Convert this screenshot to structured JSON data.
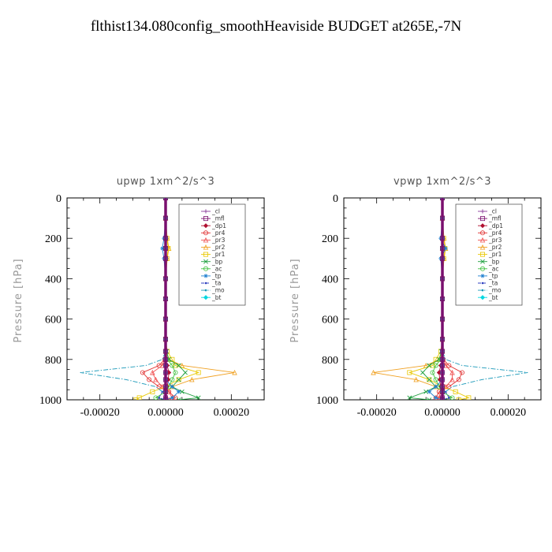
{
  "title": "flthist134.080config_smoothHeaviside  BUDGET at265E,-7N",
  "chart_data": [
    {
      "type": "line",
      "title": "upwp   1xm^2/s^3",
      "ylabel": "Pressure [hPa]",
      "xlabel": "",
      "xlim": [
        -0.0003,
        0.0003
      ],
      "ylim": [
        1000,
        0
      ],
      "xticks": [
        -0.0002,
        0.0,
        0.0002
      ],
      "xtick_labels": [
        "-0.00020",
        "0.00000",
        "0.00020"
      ],
      "yticks": [
        0,
        200,
        400,
        600,
        800,
        1000
      ],
      "ytick_labels": [
        "0",
        "200",
        "400",
        "600",
        "800",
        "1000"
      ],
      "legend_position": "top-right",
      "y": [
        0,
        100,
        200,
        250,
        300,
        400,
        500,
        600,
        700,
        760,
        800,
        830,
        865,
        900,
        935,
        960,
        990,
        1000
      ],
      "series": [
        {
          "name": "_cl",
          "color": "#8a3c9a",
          "marker": "plus",
          "dash": "solid",
          "values": [
            0,
            0,
            0,
            0,
            0,
            0,
            0,
            0,
            0,
            0,
            0,
            0,
            0,
            0,
            0,
            0,
            0,
            0
          ]
        },
        {
          "name": "_mfl",
          "color": "#7a0f6e",
          "marker": "square",
          "dash": "solid",
          "values": [
            0,
            0,
            0,
            0,
            0,
            0,
            0,
            0,
            0,
            0,
            0,
            0,
            0,
            0,
            0,
            0,
            0,
            0
          ]
        },
        {
          "name": "_dp1",
          "color": "#b01030",
          "marker": "diamond",
          "dash": "solid",
          "values": [
            0,
            0,
            0,
            0,
            0,
            0,
            0,
            0,
            0,
            0,
            0,
            5e-06,
            1e-05,
            8e-06,
            5e-06,
            3e-06,
            1e-06,
            0
          ]
        },
        {
          "name": "_pr4",
          "color": "#e03030",
          "marker": "circle",
          "dash": "solid",
          "values": [
            0,
            0,
            0,
            0,
            0,
            0,
            0,
            0,
            0,
            0,
            -3e-06,
            -2e-05,
            -7e-05,
            -5e-05,
            -2e-05,
            1e-05,
            3e-05,
            2e-05
          ]
        },
        {
          "name": "_pr3",
          "color": "#f05050",
          "marker": "triangle",
          "dash": "solid",
          "values": [
            0,
            0,
            0,
            0,
            0,
            0,
            0,
            0,
            0,
            0,
            -2e-06,
            -1e-05,
            -4e-05,
            -3e-05,
            -1e-05,
            1e-05,
            2e-05,
            1e-05
          ]
        },
        {
          "name": "_pr2",
          "color": "#f0a020",
          "marker": "triangle",
          "dash": "solid",
          "values": [
            0,
            0,
            5e-06,
            1e-05,
            5e-06,
            0,
            0,
            0,
            0,
            0,
            1e-05,
            5e-05,
            0.00021,
            8e-05,
            2e-05,
            0,
            0,
            0
          ]
        },
        {
          "name": "_pr1",
          "color": "#e8c800",
          "marker": "square",
          "dash": "solid",
          "values": [
            0,
            0,
            4e-06,
            8e-06,
            4e-06,
            0,
            0,
            0,
            0,
            5e-06,
            2e-05,
            3e-05,
            0.0001,
            4e-05,
            0,
            -4e-05,
            -8e-05,
            -9e-05
          ]
        },
        {
          "name": "_bp",
          "color": "#20a040",
          "marker": "cross",
          "dash": "solid",
          "values": [
            0,
            0,
            0,
            0,
            0,
            0,
            0,
            0,
            0,
            3e-06,
            1e-05,
            4e-05,
            6e-05,
            4e-05,
            2e-05,
            5e-05,
            0.0001,
            4e-05
          ]
        },
        {
          "name": "_ac",
          "color": "#40c040",
          "marker": "circle",
          "dash": "solid",
          "values": [
            0,
            0,
            0,
            0,
            0,
            0,
            0,
            0,
            0,
            0,
            5e-06,
            2e-05,
            3e-05,
            2e-05,
            1e-05,
            0,
            -3e-05,
            0
          ]
        },
        {
          "name": "_tp",
          "color": "#2080d0",
          "marker": "star",
          "dash": "solid",
          "values": [
            0,
            0,
            -5e-06,
            -1e-05,
            -5e-06,
            0,
            0,
            0,
            0,
            0,
            0,
            0,
            0,
            0,
            2e-05,
            4e-05,
            2e-05,
            0
          ]
        },
        {
          "name": "_ta",
          "color": "#3040c0",
          "marker": "dot",
          "dash": "dash",
          "values": [
            0,
            0,
            0,
            0,
            0,
            0,
            0,
            0,
            0,
            0,
            0,
            0,
            0,
            0,
            0,
            -1e-05,
            -2e-05,
            0
          ]
        },
        {
          "name": "_mo",
          "color": "#1898b8",
          "marker": "none",
          "dash": "dashdot",
          "values": [
            0,
            0,
            0,
            0,
            0,
            0,
            0,
            0,
            0,
            0,
            -1e-05,
            -6e-05,
            -0.00026,
            -0.00012,
            -3e-05,
            -1e-05,
            0,
            0
          ]
        },
        {
          "name": "_bt",
          "color": "#00d8e0",
          "marker": "diamond",
          "dash": "solid",
          "values": [
            0,
            0,
            0,
            0,
            0,
            0,
            0,
            0,
            0,
            0,
            0,
            0,
            0,
            0,
            0,
            0,
            0,
            0
          ]
        }
      ]
    },
    {
      "type": "line",
      "title": "vpwp   1xm^2/s^3",
      "ylabel": "Pressure [hPa]",
      "xlabel": "",
      "xlim": [
        -0.0003,
        0.0003
      ],
      "ylim": [
        1000,
        0
      ],
      "xticks": [
        -0.0002,
        0.0,
        0.0002
      ],
      "xtick_labels": [
        "-0.00020",
        "0.00000",
        "0.00020"
      ],
      "yticks": [
        0,
        200,
        400,
        600,
        800,
        1000
      ],
      "ytick_labels": [
        "0",
        "200",
        "400",
        "600",
        "800",
        "1000"
      ],
      "legend_position": "top-right",
      "y": [
        0,
        100,
        200,
        250,
        300,
        400,
        500,
        600,
        700,
        760,
        800,
        830,
        865,
        900,
        935,
        960,
        990,
        1000
      ],
      "series": [
        {
          "name": "_cl",
          "color": "#8a3c9a",
          "marker": "plus",
          "dash": "solid",
          "values": [
            0,
            0,
            0,
            0,
            0,
            0,
            0,
            0,
            0,
            0,
            0,
            0,
            0,
            0,
            0,
            0,
            0,
            0
          ]
        },
        {
          "name": "_mfl",
          "color": "#7a0f6e",
          "marker": "square",
          "dash": "solid",
          "values": [
            0,
            0,
            0,
            0,
            0,
            0,
            0,
            0,
            0,
            0,
            0,
            0,
            0,
            0,
            0,
            0,
            0,
            0
          ]
        },
        {
          "name": "_dp1",
          "color": "#b01030",
          "marker": "diamond",
          "dash": "solid",
          "values": [
            0,
            0,
            0,
            0,
            0,
            0,
            0,
            0,
            0,
            0,
            0,
            -5e-06,
            -1e-05,
            -8e-06,
            -5e-06,
            -3e-06,
            -1e-06,
            0
          ]
        },
        {
          "name": "_pr4",
          "color": "#e03030",
          "marker": "circle",
          "dash": "solid",
          "values": [
            0,
            0,
            0,
            0,
            0,
            0,
            0,
            0,
            0,
            0,
            3e-06,
            2e-05,
            6e-05,
            5e-05,
            2e-05,
            -1e-05,
            -2e-05,
            -1e-05
          ]
        },
        {
          "name": "_pr3",
          "color": "#f05050",
          "marker": "triangle",
          "dash": "solid",
          "values": [
            0,
            0,
            0,
            0,
            0,
            0,
            0,
            0,
            0,
            0,
            2e-06,
            1e-05,
            3e-05,
            3e-05,
            1e-05,
            -5e-06,
            -1e-05,
            0
          ]
        },
        {
          "name": "_pr2",
          "color": "#f0a020",
          "marker": "triangle",
          "dash": "solid",
          "values": [
            0,
            0,
            5e-06,
            1e-05,
            5e-06,
            0,
            0,
            0,
            0,
            0,
            -1e-05,
            -5e-05,
            -0.00021,
            -8e-05,
            -2e-05,
            0,
            0,
            0
          ]
        },
        {
          "name": "_pr1",
          "color": "#e8c800",
          "marker": "square",
          "dash": "solid",
          "values": [
            0,
            0,
            4e-06,
            8e-06,
            4e-06,
            0,
            0,
            0,
            0,
            -5e-06,
            -2e-05,
            -3e-05,
            -0.0001,
            -4e-05,
            0,
            4e-05,
            8e-05,
            5e-05
          ]
        },
        {
          "name": "_bp",
          "color": "#20a040",
          "marker": "cross",
          "dash": "solid",
          "values": [
            0,
            0,
            0,
            0,
            0,
            0,
            0,
            0,
            0,
            -3e-06,
            -1e-05,
            -4e-05,
            -6e-05,
            -4e-05,
            -2e-05,
            -5e-05,
            -0.0001,
            -4e-05
          ]
        },
        {
          "name": "_ac",
          "color": "#40c040",
          "marker": "circle",
          "dash": "solid",
          "values": [
            0,
            0,
            0,
            0,
            0,
            0,
            0,
            0,
            0,
            0,
            -5e-06,
            -2e-05,
            -3e-05,
            -2e-05,
            -1e-05,
            0,
            3e-05,
            0
          ]
        },
        {
          "name": "_tp",
          "color": "#2080d0",
          "marker": "star",
          "dash": "solid",
          "values": [
            0,
            0,
            -5e-06,
            1e-05,
            -5e-06,
            0,
            0,
            0,
            0,
            0,
            0,
            0,
            0,
            0,
            -2e-05,
            -4e-05,
            -2e-05,
            0
          ]
        },
        {
          "name": "_ta",
          "color": "#3040c0",
          "marker": "dot",
          "dash": "dash",
          "values": [
            0,
            0,
            0,
            0,
            0,
            0,
            0,
            0,
            0,
            0,
            0,
            0,
            0,
            0,
            0,
            1e-05,
            2e-05,
            0
          ]
        },
        {
          "name": "_mo",
          "color": "#1898b8",
          "marker": "none",
          "dash": "dashdot",
          "values": [
            0,
            0,
            0,
            0,
            0,
            0,
            0,
            0,
            0,
            0,
            1e-05,
            6e-05,
            0.00026,
            0.00012,
            3e-05,
            1e-05,
            0,
            0
          ]
        },
        {
          "name": "_bt",
          "color": "#00d8e0",
          "marker": "diamond",
          "dash": "solid",
          "values": [
            0,
            0,
            0,
            0,
            0,
            0,
            0,
            0,
            0,
            0,
            0,
            0,
            0,
            0,
            0,
            0,
            0,
            0
          ]
        }
      ]
    }
  ]
}
